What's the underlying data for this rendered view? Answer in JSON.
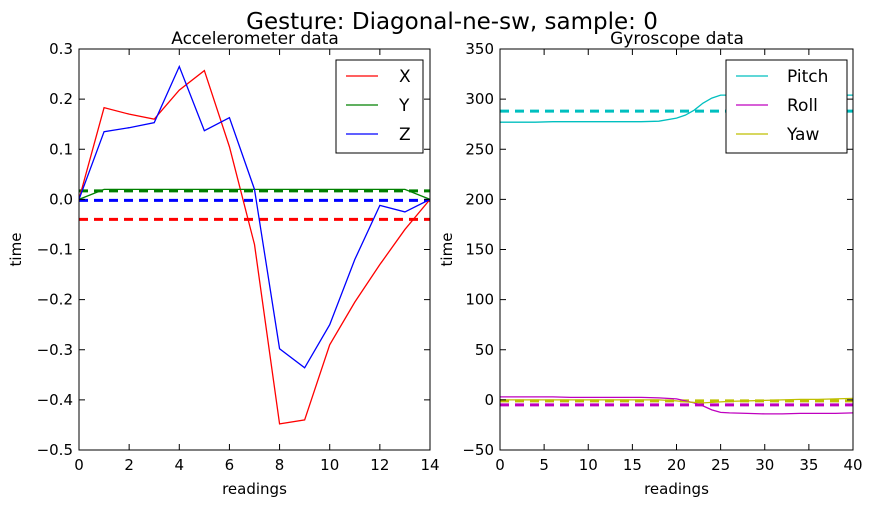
{
  "suptitle": "Gesture: Diagonal-ne-sw, sample: 0",
  "chart_data": [
    {
      "type": "line",
      "title": "Accelerometer data",
      "xlabel": "readings",
      "ylabel": "time",
      "xlim": [
        0,
        14
      ],
      "ylim": [
        -0.5,
        0.3
      ],
      "xticks": [
        "0",
        "2",
        "4",
        "6",
        "8",
        "10",
        "12",
        "14"
      ],
      "yticks": [
        "0.3",
        "0.2",
        "0.1",
        "0.0",
        "−0.1",
        "−0.2",
        "−0.3",
        "−0.4",
        "−0.5"
      ],
      "grid": false,
      "legend": "top-right",
      "series": [
        {
          "name": "X",
          "color": "#ff0000",
          "x": [
            0,
            1,
            2,
            3,
            4,
            5,
            6,
            7,
            8,
            9,
            10,
            11,
            12,
            13,
            14
          ],
          "values": [
            0.0,
            0.183,
            0.17,
            0.16,
            0.218,
            0.257,
            0.105,
            -0.09,
            -0.448,
            -0.44,
            -0.29,
            -0.205,
            -0.13,
            -0.06,
            0.0
          ]
        },
        {
          "name": "Y",
          "color": "#008000",
          "x": [
            0,
            1,
            2,
            3,
            4,
            5,
            6,
            7,
            8,
            9,
            10,
            11,
            12,
            13,
            14
          ],
          "values": [
            0.0,
            0.02,
            0.02,
            0.02,
            0.02,
            0.02,
            0.02,
            0.02,
            0.02,
            0.02,
            0.02,
            0.02,
            0.02,
            0.02,
            0.0
          ]
        },
        {
          "name": "Z",
          "color": "#0000ff",
          "x": [
            0,
            1,
            2,
            3,
            4,
            5,
            6,
            7,
            8,
            9,
            10,
            11,
            12,
            13,
            14
          ],
          "values": [
            0.0,
            0.135,
            0.143,
            0.153,
            0.265,
            0.137,
            0.163,
            0.02,
            -0.298,
            -0.336,
            -0.25,
            -0.12,
            -0.012,
            -0.025,
            0.0
          ]
        }
      ],
      "mean_lines": [
        {
          "series": "X",
          "value": -0.04,
          "color": "#ff0000"
        },
        {
          "series": "Y",
          "value": 0.017,
          "color": "#008000"
        },
        {
          "series": "Z",
          "value": -0.002,
          "color": "#0000ff"
        }
      ]
    },
    {
      "type": "line",
      "title": "Gyroscope data",
      "xlabel": "readings",
      "ylabel": "time",
      "xlim": [
        0,
        40
      ],
      "ylim": [
        -50,
        350
      ],
      "xticks": [
        "0",
        "5",
        "10",
        "15",
        "20",
        "25",
        "30",
        "35",
        "40"
      ],
      "yticks": [
        "350",
        "300",
        "250",
        "200",
        "150",
        "100",
        "50",
        "0",
        "−50"
      ],
      "grid": false,
      "legend": "top-right",
      "series": [
        {
          "name": "Pitch",
          "color": "#00bfbf",
          "x": [
            0,
            2,
            4,
            6,
            8,
            10,
            12,
            14,
            16,
            18,
            20,
            21,
            22,
            23,
            24,
            25,
            26,
            28,
            30,
            32,
            34,
            36,
            38,
            40
          ],
          "values": [
            277,
            277,
            277,
            277.5,
            277.5,
            277.5,
            277.5,
            277.5,
            277.5,
            278,
            281,
            284,
            289,
            296,
            301,
            304,
            304,
            303,
            302,
            302,
            303,
            304,
            304,
            304
          ]
        },
        {
          "name": "Roll",
          "color": "#bf00bf",
          "x": [
            0,
            2,
            4,
            6,
            8,
            10,
            12,
            14,
            16,
            18,
            20,
            21,
            22,
            23,
            24,
            25,
            26,
            28,
            30,
            32,
            34,
            36,
            38,
            40
          ],
          "values": [
            3,
            3,
            3,
            3,
            2.5,
            2.5,
            2.5,
            2.5,
            2.5,
            2,
            1,
            -1,
            -3,
            -6,
            -10,
            -12.5,
            -13,
            -13.5,
            -14,
            -14,
            -13.5,
            -13.5,
            -13.5,
            -13
          ]
        },
        {
          "name": "Yaw",
          "color": "#bfbf00",
          "x": [
            0,
            2,
            4,
            6,
            8,
            10,
            12,
            14,
            16,
            18,
            20,
            21,
            22,
            23,
            24,
            25,
            26,
            28,
            30,
            32,
            34,
            36,
            38,
            40
          ],
          "values": [
            0,
            0,
            0,
            0,
            0,
            0,
            0,
            0,
            0,
            0,
            -1,
            -2,
            -2.5,
            -3,
            -2.5,
            -2,
            -1.5,
            -1,
            -0.5,
            0,
            0.5,
            0.5,
            1,
            1.5
          ]
        }
      ],
      "mean_lines": [
        {
          "series": "Pitch",
          "value": 288,
          "color": "#00bfbf"
        },
        {
          "series": "Roll",
          "value": -5,
          "color": "#bf00bf"
        },
        {
          "series": "Yaw",
          "value": -1,
          "color": "#bfbf00"
        }
      ]
    }
  ]
}
